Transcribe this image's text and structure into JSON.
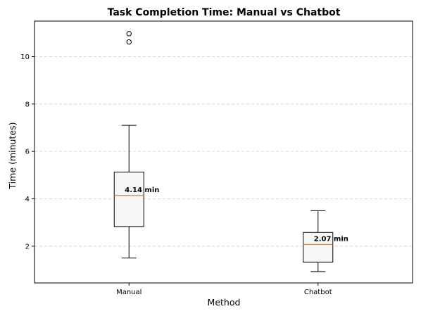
{
  "chart_data": {
    "type": "box",
    "title": "Task Completion Time: Manual vs Chatbot",
    "xlabel": "Method",
    "ylabel": "Time (minutes)",
    "ylim": [
      0.45,
      11.5
    ],
    "yticks": [
      2,
      4,
      6,
      8,
      10
    ],
    "grid": "y-dashed",
    "categories": [
      "Manual",
      "Chatbot"
    ],
    "boxes": [
      {
        "category": "Manual",
        "whisker_low": 1.5,
        "q1": 2.83,
        "median": 4.14,
        "q3": 5.13,
        "whisker_high": 7.1,
        "outliers": [
          10.62,
          10.97
        ],
        "median_label": "4.14 min"
      },
      {
        "category": "Chatbot",
        "whisker_low": 0.93,
        "q1": 1.33,
        "median": 2.07,
        "q3": 2.58,
        "whisker_high": 3.5,
        "outliers": [],
        "median_label": "2.07 min"
      }
    ],
    "colors": {
      "box_fill": "#f7f7f7",
      "median": "#ff7f0e",
      "grid": "#cccccc",
      "line": "#000000"
    }
  }
}
